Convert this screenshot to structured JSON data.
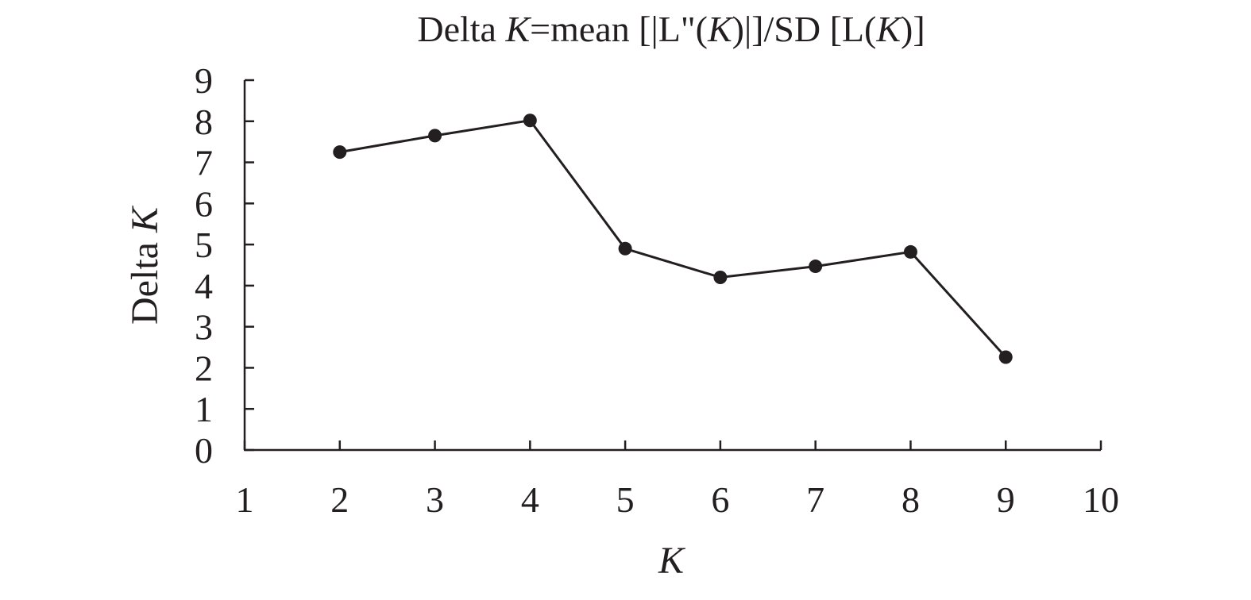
{
  "chart_data": {
    "type": "line",
    "title_parts": [
      "Delta ",
      "K",
      "=mean [|L\"(",
      "K",
      ")|]/SD [L(",
      "K",
      ")]"
    ],
    "xlabel": "K",
    "ylabel_parts": [
      "Delta ",
      "K"
    ],
    "xlim": [
      1,
      10
    ],
    "ylim": [
      0,
      9
    ],
    "x_ticks": [
      "1",
      "2",
      "3",
      "4",
      "5",
      "6",
      "7",
      "8",
      "9",
      "10"
    ],
    "y_ticks": [
      "0",
      "1",
      "2",
      "3",
      "4",
      "5",
      "6",
      "7",
      "8",
      "9"
    ],
    "grid": false,
    "legend": "none",
    "series": [
      {
        "x": [
          2,
          3,
          4,
          5,
          6,
          7,
          8,
          9
        ],
        "values": [
          7.25,
          7.65,
          8.02,
          4.9,
          4.2,
          4.47,
          4.82,
          2.26
        ],
        "color": "#231f20"
      }
    ]
  }
}
